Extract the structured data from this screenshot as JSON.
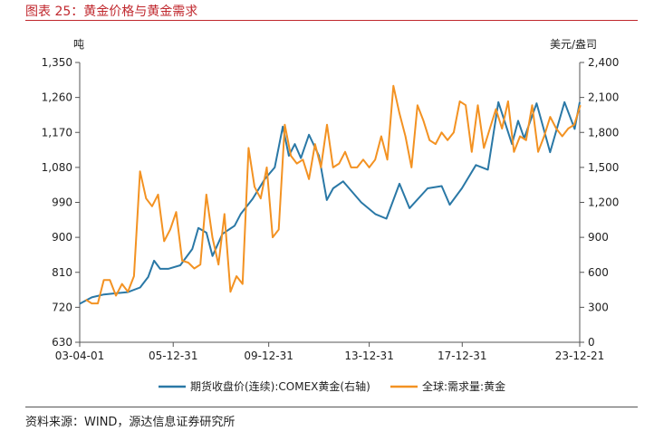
{
  "figure": {
    "title": "图表 25：黄金价格与黄金需求",
    "source": "资料来源：WIND，源达信息证券研究所"
  },
  "colors": {
    "price": "#2a78a6",
    "demand": "#f39222",
    "title": "#c0272d"
  },
  "chart_data": {
    "type": "line",
    "left_axis": {
      "unit": "吨",
      "min": 630,
      "max": 1350,
      "ticks": [
        "630",
        "720",
        "810",
        "900",
        "990",
        "1,080",
        "1,170",
        "1,260",
        "1,350"
      ]
    },
    "right_axis": {
      "unit": "美元/盎司",
      "min": 0,
      "max": 2400,
      "ticks": [
        "0",
        "300",
        "600",
        "900",
        "1,200",
        "1,500",
        "1,800",
        "2,100",
        "2,400"
      ]
    },
    "x_axis": {
      "start": "2003-04-01",
      "end": "2023-12-21",
      "ticks": [
        "03-04-01",
        "05-12-31",
        "09-12-31",
        "13-12-31",
        "17-12-31",
        "23-12-21"
      ]
    },
    "legend_position": "bottom",
    "series": [
      {
        "name": "期货收盘价(连续):COMEX黄金(右轴)",
        "axis": "right",
        "color": "#2a78a6",
        "points": [
          [
            "2003-04-01",
            330
          ],
          [
            "2003-10-01",
            385
          ],
          [
            "2004-04-01",
            410
          ],
          [
            "2004-10-01",
            420
          ],
          [
            "2005-04-01",
            430
          ],
          [
            "2005-10-01",
            470
          ],
          [
            "2006-02-01",
            560
          ],
          [
            "2006-05-01",
            700
          ],
          [
            "2006-08-01",
            630
          ],
          [
            "2006-12-01",
            630
          ],
          [
            "2007-06-01",
            660
          ],
          [
            "2007-12-01",
            800
          ],
          [
            "2008-03-01",
            980
          ],
          [
            "2008-07-01",
            940
          ],
          [
            "2008-10-01",
            740
          ],
          [
            "2009-03-01",
            930
          ],
          [
            "2009-09-01",
            1000
          ],
          [
            "2009-12-01",
            1100
          ],
          [
            "2010-06-01",
            1230
          ],
          [
            "2010-12-01",
            1400
          ],
          [
            "2011-05-01",
            1500
          ],
          [
            "2011-08-31",
            1850
          ],
          [
            "2011-12-01",
            1600
          ],
          [
            "2012-03-01",
            1700
          ],
          [
            "2012-06-01",
            1580
          ],
          [
            "2012-10-01",
            1780
          ],
          [
            "2013-03-01",
            1600
          ],
          [
            "2013-06-28",
            1220
          ],
          [
            "2013-10-01",
            1320
          ],
          [
            "2014-03-01",
            1380
          ],
          [
            "2014-12-01",
            1200
          ],
          [
            "2015-07-01",
            1100
          ],
          [
            "2015-12-17",
            1060
          ],
          [
            "2016-07-01",
            1360
          ],
          [
            "2016-12-01",
            1150
          ],
          [
            "2017-09-01",
            1320
          ],
          [
            "2018-04-01",
            1340
          ],
          [
            "2018-08-01",
            1180
          ],
          [
            "2019-02-01",
            1320
          ],
          [
            "2019-09-01",
            1520
          ],
          [
            "2020-03-01",
            1480
          ],
          [
            "2020-08-07",
            2060
          ],
          [
            "2021-03-01",
            1700
          ],
          [
            "2021-06-01",
            1900
          ],
          [
            "2021-09-01",
            1750
          ],
          [
            "2022-03-08",
            2050
          ],
          [
            "2022-09-28",
            1630
          ],
          [
            "2023-05-04",
            2060
          ],
          [
            "2023-10-05",
            1830
          ],
          [
            "2023-12-21",
            2060
          ]
        ]
      },
      {
        "name": "全球:需求量:黄金",
        "axis": "left",
        "color": "#f39222",
        "points": [
          [
            "2003-06-30",
            740
          ],
          [
            "2003-09-30",
            730
          ],
          [
            "2003-12-31",
            730
          ],
          [
            "2004-03-31",
            790
          ],
          [
            "2004-06-30",
            790
          ],
          [
            "2004-09-30",
            750
          ],
          [
            "2004-12-31",
            780
          ],
          [
            "2005-03-31",
            760
          ],
          [
            "2005-06-30",
            800
          ],
          [
            "2005-09-30",
            1070
          ],
          [
            "2005-12-31",
            1000
          ],
          [
            "2006-03-31",
            980
          ],
          [
            "2006-06-30",
            1010
          ],
          [
            "2006-09-30",
            890
          ],
          [
            "2006-12-31",
            920
          ],
          [
            "2007-03-31",
            965
          ],
          [
            "2007-06-30",
            840
          ],
          [
            "2007-09-30",
            835
          ],
          [
            "2007-12-31",
            820
          ],
          [
            "2008-03-31",
            830
          ],
          [
            "2008-06-30",
            1010
          ],
          [
            "2008-09-30",
            900
          ],
          [
            "2008-12-31",
            830
          ],
          [
            "2009-03-31",
            960
          ],
          [
            "2009-06-30",
            760
          ],
          [
            "2009-09-30",
            800
          ],
          [
            "2009-12-31",
            780
          ],
          [
            "2010-03-31",
            1130
          ],
          [
            "2010-06-30",
            1030
          ],
          [
            "2010-09-30",
            1000
          ],
          [
            "2010-12-31",
            1080
          ],
          [
            "2011-03-31",
            900
          ],
          [
            "2011-06-30",
            920
          ],
          [
            "2011-09-30",
            1190
          ],
          [
            "2011-12-31",
            1110
          ],
          [
            "2012-03-31",
            1090
          ],
          [
            "2012-06-30",
            1100
          ],
          [
            "2012-09-30",
            1050
          ],
          [
            "2012-12-31",
            1140
          ],
          [
            "2013-03-31",
            1080
          ],
          [
            "2013-06-30",
            1190
          ],
          [
            "2013-09-30",
            1080
          ],
          [
            "2013-12-31",
            1090
          ],
          [
            "2014-03-31",
            1120
          ],
          [
            "2014-06-30",
            1080
          ],
          [
            "2014-09-30",
            1080
          ],
          [
            "2014-12-31",
            1100
          ],
          [
            "2015-03-31",
            1080
          ],
          [
            "2015-06-30",
            1100
          ],
          [
            "2015-09-30",
            1160
          ],
          [
            "2015-12-31",
            1100
          ],
          [
            "2016-03-31",
            1290
          ],
          [
            "2016-06-30",
            1220
          ],
          [
            "2016-09-30",
            1160
          ],
          [
            "2016-12-31",
            1080
          ],
          [
            "2017-03-31",
            1240
          ],
          [
            "2017-06-30",
            1200
          ],
          [
            "2017-09-30",
            1150
          ],
          [
            "2017-12-31",
            1140
          ],
          [
            "2018-03-31",
            1170
          ],
          [
            "2018-06-30",
            1150
          ],
          [
            "2018-09-30",
            1170
          ],
          [
            "2018-12-31",
            1250
          ],
          [
            "2019-03-31",
            1240
          ],
          [
            "2019-06-30",
            1120
          ],
          [
            "2019-09-30",
            1240
          ],
          [
            "2019-12-31",
            1130
          ],
          [
            "2020-03-31",
            1180
          ],
          [
            "2020-06-30",
            1230
          ],
          [
            "2020-09-30",
            1180
          ],
          [
            "2020-12-31",
            1250
          ],
          [
            "2021-03-31",
            1120
          ],
          [
            "2021-06-30",
            1160
          ],
          [
            "2021-09-30",
            1150
          ],
          [
            "2021-12-31",
            1240
          ],
          [
            "2022-03-31",
            1120
          ],
          [
            "2022-06-30",
            1160
          ],
          [
            "2022-09-30",
            1210
          ],
          [
            "2022-12-31",
            1180
          ],
          [
            "2023-03-31",
            1160
          ],
          [
            "2023-06-30",
            1180
          ],
          [
            "2023-09-30",
            1190
          ],
          [
            "2023-12-31",
            1240
          ]
        ]
      }
    ]
  }
}
